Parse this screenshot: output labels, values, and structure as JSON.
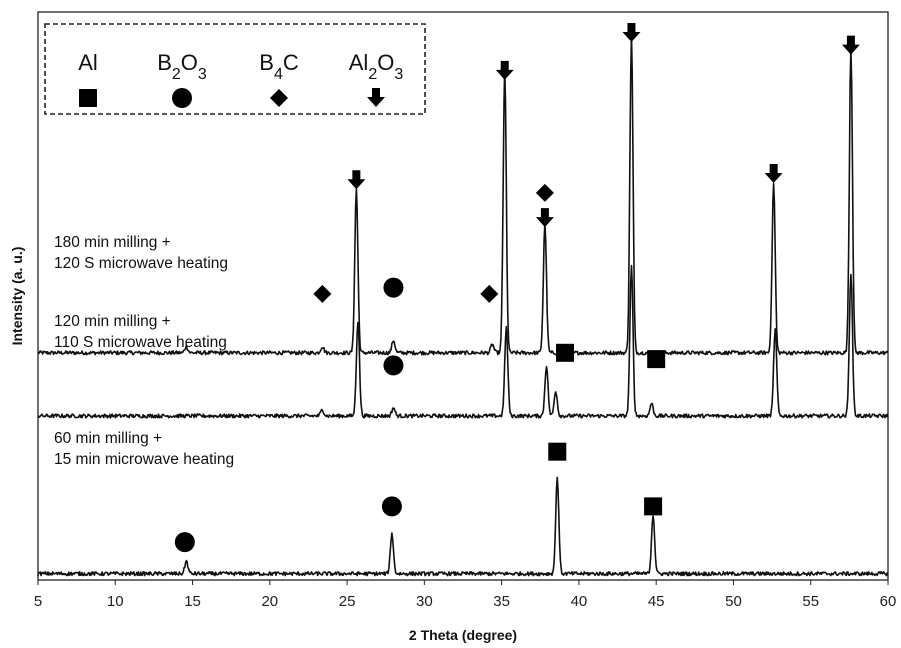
{
  "chart_data": {
    "type": "line",
    "xlabel": "2 Theta (degree)",
    "ylabel": "Intensity (a. u.)",
    "xlim": [
      5,
      60
    ],
    "xticks": [
      "5",
      "10",
      "15",
      "20",
      "25",
      "30",
      "35",
      "40",
      "45",
      "50",
      "55",
      "60"
    ],
    "grid": false,
    "legend": {
      "position": "top-left",
      "entries": [
        {
          "label": "Al",
          "marker": "square"
        },
        {
          "label": "B2O3",
          "marker": "circle"
        },
        {
          "label": "B4C",
          "marker": "diamond"
        },
        {
          "label": "Al2O3",
          "marker": "arrow-down"
        }
      ]
    },
    "series": [
      {
        "id": "s180",
        "label_lines": [
          "180 min milling +",
          "120 S microwave heating"
        ],
        "baseline": 0.3,
        "peaks": [
          {
            "x": 14.6,
            "height": 0.03
          },
          {
            "x": 23.4,
            "height": 0.03
          },
          {
            "x": 25.6,
            "height": 0.78
          },
          {
            "x": 28.0,
            "height": 0.06
          },
          {
            "x": 34.4,
            "height": 0.04
          },
          {
            "x": 35.2,
            "height": 1.35
          },
          {
            "x": 37.8,
            "height": 0.61
          },
          {
            "x": 43.4,
            "height": 1.51
          },
          {
            "x": 52.6,
            "height": 0.81
          },
          {
            "x": 57.6,
            "height": 1.45
          }
        ],
        "markers": [
          {
            "x": 23.4,
            "y": 0.58,
            "type": "diamond"
          },
          {
            "x": 28.0,
            "y": 0.61,
            "type": "circle"
          },
          {
            "x": 34.2,
            "y": 0.58,
            "type": "diamond"
          },
          {
            "x": 35.2,
            "y": 1.64,
            "type": "arrow-down"
          },
          {
            "x": 37.8,
            "y": 1.06,
            "type": "diamond"
          },
          {
            "x": 37.8,
            "y": 0.94,
            "type": "arrow-down"
          },
          {
            "x": 43.4,
            "y": 1.82,
            "type": "arrow-down"
          },
          {
            "x": 52.6,
            "y": 1.15,
            "type": "arrow-down"
          },
          {
            "x": 57.6,
            "y": 1.76,
            "type": "arrow-down"
          },
          {
            "x": 25.6,
            "y": 1.12,
            "type": "arrow-down"
          }
        ]
      },
      {
        "id": "s120",
        "label_lines": [
          "120 min milling +",
          "110 S microwave heating"
        ],
        "baseline": 0.0,
        "peaks": [
          {
            "x": 23.4,
            "height": 0.03
          },
          {
            "x": 25.7,
            "height": 0.45
          },
          {
            "x": 28.0,
            "height": 0.04
          },
          {
            "x": 35.3,
            "height": 0.42
          },
          {
            "x": 37.9,
            "height": 0.24
          },
          {
            "x": 38.5,
            "height": 0.12
          },
          {
            "x": 43.4,
            "height": 0.71
          },
          {
            "x": 44.7,
            "height": 0.06
          },
          {
            "x": 52.7,
            "height": 0.41
          },
          {
            "x": 57.6,
            "height": 0.68
          }
        ],
        "markers": [
          {
            "x": 28.0,
            "y": 0.24,
            "type": "circle"
          },
          {
            "x": 39.1,
            "y": 0.3,
            "type": "square"
          },
          {
            "x": 45.0,
            "y": 0.27,
            "type": "square"
          }
        ]
      },
      {
        "id": "s60",
        "label_lines": [
          "60 min milling +",
          "15 min microwave heating"
        ],
        "baseline": -0.75,
        "peaks": [
          {
            "x": 14.6,
            "height": 0.06
          },
          {
            "x": 27.9,
            "height": 0.19
          },
          {
            "x": 38.6,
            "height": 0.46
          },
          {
            "x": 44.8,
            "height": 0.28
          }
        ],
        "markers": [
          {
            "x": 14.5,
            "y": -0.6,
            "type": "circle"
          },
          {
            "x": 27.9,
            "y": -0.43,
            "type": "circle"
          },
          {
            "x": 38.6,
            "y": -0.17,
            "type": "square"
          },
          {
            "x": 44.8,
            "y": -0.43,
            "type": "square"
          }
        ]
      }
    ]
  }
}
